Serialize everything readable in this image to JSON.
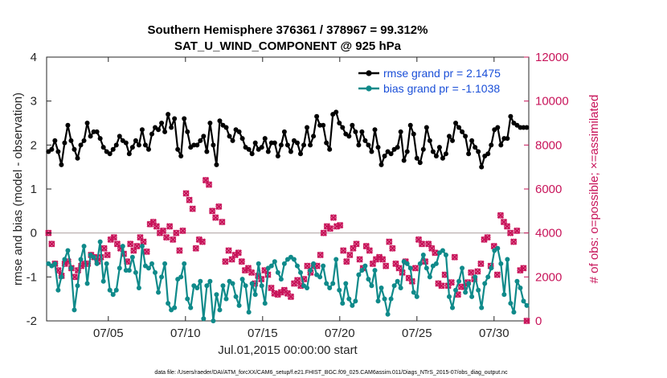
{
  "chart_data": {
    "type": "line",
    "title": "Southern Hemisphere 376361 / 378967 = 99.312%",
    "subtitle": "SAT_U_WIND_COMPONENT @ 925 hPa",
    "xlabel": "Jul.01,2015 00:00:00 start",
    "ylabel": "rmse and bias (model - observation)",
    "ylabel_right": "# of obs: o=possible; ×=assimilated",
    "xlim": [
      0,
      31.25
    ],
    "ylim": [
      -2,
      4
    ],
    "ylim_right": [
      0,
      12000
    ],
    "x_ticks": [
      4,
      9,
      14,
      19,
      24,
      29
    ],
    "x_tick_labels": [
      "07/05",
      "07/10",
      "07/15",
      "07/20",
      "07/25",
      "07/30"
    ],
    "y_ticks": [
      -2,
      -1,
      0,
      1,
      2,
      3,
      4
    ],
    "y_tick_labels": [
      "-2",
      "-1",
      "0",
      "1",
      "2",
      "3",
      "4"
    ],
    "y_ticks_right": [
      0,
      2000,
      4000,
      6000,
      8000,
      10000,
      12000
    ],
    "y_tick_labels_right": [
      "0",
      "2000",
      "4000",
      "6000",
      "8000",
      "10000",
      "12000"
    ],
    "zero_line": 0,
    "legend_position": "top-right",
    "series": [
      {
        "name": "rmse grand pr = 2.1475",
        "color": "#000000",
        "marker": "circle",
        "values": [
          1.85,
          1.9,
          2.1,
          1.85,
          1.55,
          2.05,
          2.45,
          2.1,
          1.9,
          1.7,
          2.0,
          2.1,
          2.5,
          2.2,
          2.3,
          2.3,
          2.15,
          1.95,
          1.85,
          1.8,
          1.9,
          2.0,
          2.2,
          2.1,
          2.05,
          1.8,
          1.95,
          2.1,
          2.0,
          2.35,
          2.0,
          1.9,
          2.25,
          2.4,
          2.35,
          2.5,
          2.3,
          2.7,
          2.4,
          2.6,
          1.9,
          1.75,
          2.6,
          2.3,
          1.95,
          2.0,
          2.0,
          2.1,
          2.2,
          1.85,
          2.5,
          2.0,
          1.55,
          2.55,
          2.45,
          2.4,
          2.2,
          2.1,
          2.35,
          2.3,
          2.15,
          1.95,
          1.9,
          1.8,
          2.05,
          1.9,
          1.95,
          2.15,
          1.85,
          2.05,
          2.05,
          1.75,
          2.0,
          2.3,
          2.0,
          1.85,
          2.1,
          2.05,
          1.8,
          2.0,
          2.4,
          2.0,
          2.2,
          2.65,
          2.45,
          2.45,
          2.05,
          1.9,
          2.7,
          2.75,
          2.5,
          2.4,
          2.25,
          2.2,
          2.45,
          2.3,
          2.0,
          2.3,
          2.1,
          2.0,
          1.85,
          2.35,
          1.95,
          1.55,
          1.75,
          1.85,
          1.8,
          1.9,
          1.95,
          2.3,
          1.65,
          1.85,
          2.45,
          2.25,
          1.7,
          1.6,
          1.9,
          2.4,
          2.1,
          1.85,
          1.75,
          1.95,
          1.7,
          1.8,
          2.2,
          2.1,
          2.5,
          2.4,
          2.3,
          2.2,
          1.8,
          2.1,
          1.95,
          1.85,
          1.5,
          1.75,
          1.8,
          2.0,
          2.35,
          2.4,
          2.0,
          2.15,
          2.15,
          2.65,
          2.5,
          2.45,
          2.4,
          2.4,
          2.4
        ]
      },
      {
        "name": "bias grand pr = -1.1038",
        "color": "#0f8a8a",
        "marker": "circle",
        "values": [
          -0.7,
          -0.75,
          -0.7,
          -1.3,
          -1.0,
          -0.6,
          -0.4,
          -0.8,
          -1.75,
          -1.2,
          -0.6,
          -0.3,
          -1.15,
          -0.5,
          -0.55,
          -0.7,
          -0.2,
          -1.1,
          -0.7,
          -1.3,
          -1.4,
          -1.3,
          -0.8,
          -0.3,
          -0.85,
          -0.85,
          -0.55,
          -0.9,
          -1.25,
          -0.3,
          -0.75,
          -0.8,
          -0.7,
          -0.9,
          -1.35,
          -1.0,
          -0.7,
          -1.6,
          -1.75,
          -1.7,
          -1.05,
          -1.0,
          -0.7,
          -1.5,
          -1.7,
          -1.2,
          -1.25,
          -1.1,
          -1.95,
          -1.2,
          -1.1,
          -2.0,
          -1.4,
          -1.75,
          -1.2,
          -1.5,
          -1.1,
          -1.15,
          -1.45,
          -1.65,
          -1.05,
          -1.2,
          -1.8,
          -1.15,
          -1.4,
          -0.7,
          -1.2,
          -1.6,
          -0.8,
          -0.75,
          -0.65,
          -0.9,
          -1.05,
          -0.7,
          -0.6,
          -0.55,
          -0.6,
          -0.75,
          -0.9,
          -1.2,
          -1.25,
          -0.85,
          -0.7,
          -0.95,
          -1.0,
          -0.75,
          -1.15,
          -1.25,
          -1.15,
          -0.6,
          -1.3,
          -1.6,
          -1.15,
          -1.5,
          -1.65,
          -1.55,
          -0.95,
          -0.85,
          -0.75,
          -1.05,
          -1.2,
          -0.85,
          -1.55,
          -1.25,
          -1.5,
          -1.85,
          -1.5,
          -1.2,
          -1.1,
          -1.25,
          -0.65,
          -0.7,
          -0.8,
          -1.35,
          -1.45,
          -0.7,
          -0.5,
          -0.8,
          -1.0,
          -0.75,
          -0.7,
          -0.45,
          -0.4,
          -0.5,
          -1.45,
          -1.7,
          -1.3,
          -1.1,
          -0.8,
          -1.35,
          -1.15,
          -1.45,
          -1.0,
          -1.3,
          -1.7,
          -1.15,
          -1.0,
          -0.8,
          -0.4,
          -0.35,
          -0.7,
          -1.4,
          -0.6,
          -1.6,
          -1.8,
          -1.1,
          -1.25,
          -1.55,
          -1.65
        ]
      },
      {
        "name": "# of obs possible",
        "axis": "right",
        "color": "#c8145a",
        "marker": "o",
        "values": [
          4000,
          3500,
          2600,
          2300,
          2050,
          2600,
          2700,
          2400,
          2000,
          2300,
          2500,
          2600,
          2600,
          3000,
          2900,
          2700,
          2900,
          3300,
          3000,
          3700,
          3800,
          3500,
          3300,
          3050,
          2700,
          3500,
          3200,
          3400,
          3800,
          3600,
          3150,
          4400,
          4500,
          4300,
          4000,
          4100,
          3800,
          4300,
          3700,
          4000,
          3200,
          4100,
          5800,
          5500,
          5100,
          3300,
          3700,
          3600,
          6400,
          6200,
          5000,
          4700,
          5200,
          4500,
          2700,
          3200,
          2800,
          3000,
          3100,
          2700,
          2300,
          2400,
          2200,
          1700,
          2050,
          1900,
          2300,
          2100,
          1500,
          1250,
          1200,
          1300,
          1400,
          1250,
          1100,
          1700,
          1850,
          1600,
          1900,
          2500,
          2200,
          2500,
          2500,
          3000,
          4000,
          4300,
          4200,
          4700,
          4300,
          4350,
          3200,
          2700,
          3000,
          3300,
          3500,
          2800,
          2400,
          3400,
          3200,
          2600,
          2800,
          2900,
          2800,
          2500,
          3600,
          3300,
          2600,
          2400,
          2200,
          2700,
          1950,
          1800,
          2400,
          3700,
          3500,
          2700,
          3500,
          3300,
          3100,
          1700,
          1600,
          2100,
          1600,
          1750,
          2900,
          1200,
          1550,
          1550,
          1750,
          2200,
          1900,
          2250,
          2600,
          3700,
          3800,
          2500,
          3400,
          2100,
          4800,
          4500,
          4300,
          4000,
          3600,
          4100,
          2300,
          2400,
          0
        ]
      },
      {
        "name": "# of obs assimilated",
        "axis": "right",
        "color": "#c8145a",
        "marker": "x",
        "values": [
          4000,
          3500,
          2600,
          2300,
          2050,
          2600,
          2700,
          2400,
          2000,
          2300,
          2500,
          2600,
          2600,
          3000,
          2900,
          2700,
          2900,
          3300,
          3000,
          3700,
          3800,
          3500,
          3300,
          3050,
          2700,
          3500,
          3200,
          3400,
          3800,
          3600,
          3150,
          4400,
          4500,
          4300,
          4000,
          4100,
          3800,
          4300,
          3700,
          4000,
          3200,
          4100,
          5800,
          5500,
          5100,
          3300,
          3700,
          3600,
          6400,
          6200,
          5000,
          4700,
          5200,
          4500,
          2700,
          3200,
          2800,
          3000,
          3100,
          2700,
          2300,
          2400,
          2200,
          1700,
          2050,
          1900,
          2300,
          2100,
          1500,
          1250,
          1200,
          1300,
          1400,
          1250,
          1100,
          1700,
          1850,
          1600,
          1900,
          2500,
          2200,
          2500,
          2500,
          3000,
          4000,
          4300,
          4200,
          4700,
          4300,
          4350,
          3200,
          2700,
          3000,
          3300,
          3500,
          2800,
          2400,
          3400,
          3200,
          2600,
          2800,
          2900,
          2800,
          2500,
          3600,
          3300,
          2600,
          2400,
          2200,
          2700,
          1950,
          1800,
          2400,
          3700,
          3500,
          2700,
          3500,
          3300,
          3100,
          1700,
          1600,
          2100,
          1600,
          1750,
          2900,
          1200,
          1550,
          1550,
          1750,
          2200,
          1900,
          2250,
          2600,
          3700,
          3800,
          2500,
          3400,
          2100,
          4800,
          4500,
          4300,
          4000,
          3600,
          4100,
          2300,
          2400,
          0
        ]
      }
    ],
    "footnote": "data file: /Users/raeder/DAI/ATM_forcXX/CAM6_setup/f.e21.FHIST_BGC.f09_025.CAM6assim.011/Diags_NTrS_2015-07/obs_diag_output.nc"
  }
}
